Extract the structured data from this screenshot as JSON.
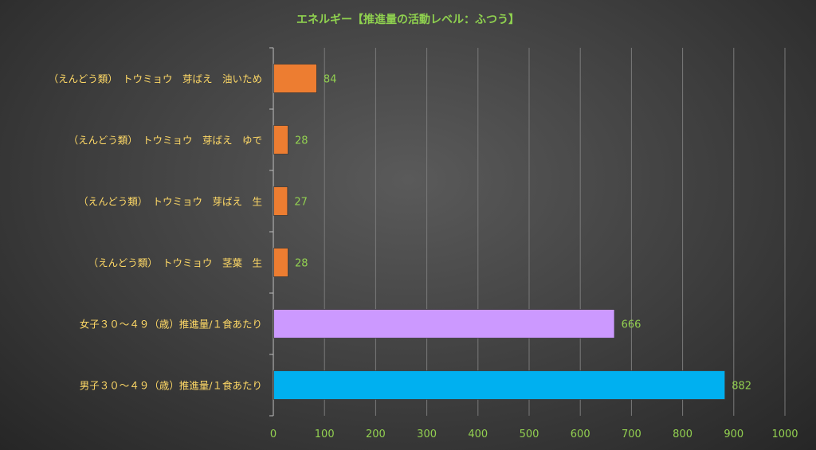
{
  "chart_data": {
    "type": "bar",
    "orientation": "horizontal",
    "title": "エネルギー【推進量の活動レベル：ふつう】",
    "xlabel": "",
    "ylabel": "",
    "xlim": [
      0,
      1000
    ],
    "xticks": [
      0,
      100,
      200,
      300,
      400,
      500,
      600,
      700,
      800,
      900,
      1000
    ],
    "grid": true,
    "legend": "none",
    "categories": [
      "（えんどう類）　トウミョウ　芽ばえ　油いため",
      "（えんどう類）　トウミョウ　芽ばえ　ゆで",
      "（えんどう類）　トウミョウ　芽ばえ　生",
      "（えんどう類）　トウミョウ　茎葉　生",
      "女子３０～４９（歳）推進量/１食あたり",
      "男子３０～４９（歳）推進量/１食あたり"
    ],
    "values": [
      84,
      28,
      27,
      28,
      666,
      882
    ],
    "colors": [
      "#ed7d31",
      "#ed7d31",
      "#ed7d31",
      "#ed7d31",
      "#cc99ff",
      "#00b0f0"
    ],
    "label_color": "#92d050",
    "category_label_color": "#ffd966",
    "tick_label_color": "#92d050"
  }
}
